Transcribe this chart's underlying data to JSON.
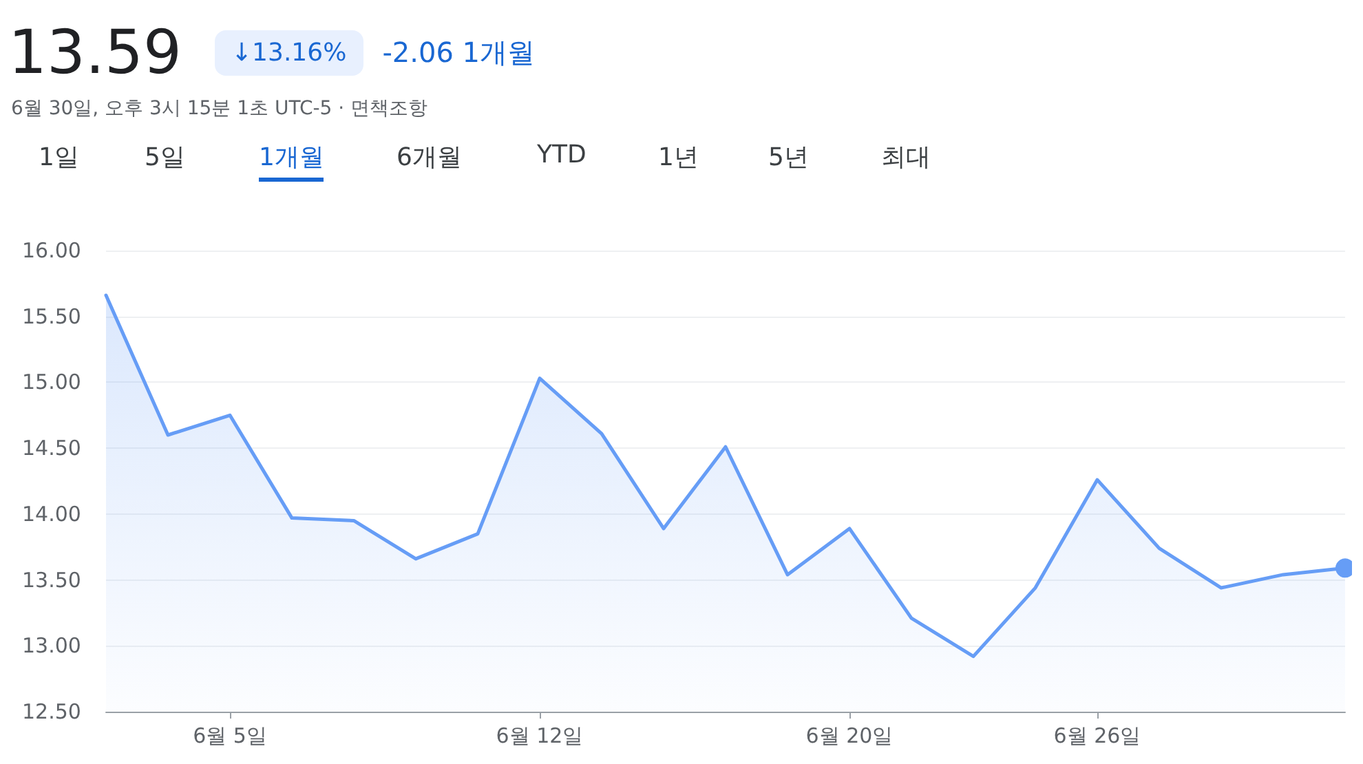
{
  "chart_data": {
    "type": "area",
    "title": "13.59",
    "subtitle": "6월 30일, 오후 3시 15분 1초 UTC-5 · 면책조항",
    "annotations": [
      "↓13.16%",
      "-2.06 1개월",
      "1일",
      "5일",
      "1개월",
      "6개월",
      "YTD",
      "1년",
      "5년",
      "최대"
    ],
    "categories": [
      null,
      null,
      "6월 5일",
      null,
      null,
      null,
      null,
      "6월 12일",
      null,
      null,
      null,
      null,
      "6월 20일",
      null,
      null,
      null,
      "6월 26일",
      null,
      null,
      null,
      null
    ],
    "values": [
      15.66,
      14.6,
      14.75,
      13.97,
      13.95,
      13.66,
      13.85,
      15.03,
      14.61,
      13.89,
      14.51,
      13.54,
      13.89,
      13.21,
      12.92,
      13.44,
      14.26,
      13.74,
      13.44,
      13.54,
      13.59
    ],
    "color": "#669df6",
    "ylim": [
      12.5,
      16
    ],
    "yticks": [
      {
        "value": 12.5,
        "label": "12.50"
      },
      {
        "value": 13,
        "label": "13.00"
      },
      {
        "value": 13.5,
        "label": "13.50"
      },
      {
        "value": 14,
        "label": "14.00"
      },
      {
        "value": 14.5,
        "label": "14.50"
      },
      {
        "value": 15,
        "label": "15.00"
      },
      {
        "value": 15.5,
        "label": "15.50"
      },
      {
        "value": 16,
        "label": "16.00"
      }
    ],
    "grid": "y",
    "marker": "none",
    "line_style": "solid"
  }
}
